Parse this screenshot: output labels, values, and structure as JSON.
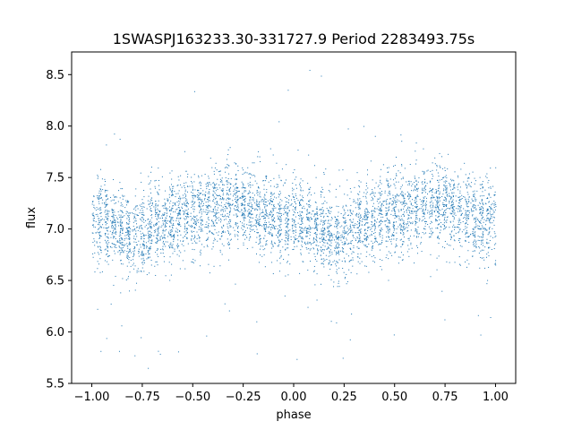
{
  "chart_data": {
    "type": "scatter",
    "title": "1SWASPJ163233.30-331727.9 Period 2283493.75s",
    "xlabel": "phase",
    "ylabel": "flux",
    "xlim": [
      -1.1,
      1.1
    ],
    "ylim": [
      5.5,
      8.72
    ],
    "x_ticks": [
      -1.0,
      -0.75,
      -0.5,
      -0.25,
      0.0,
      0.25,
      0.5,
      0.75,
      1.0
    ],
    "x_tick_labels": [
      "−1.00",
      "−0.75",
      "−0.50",
      "−0.25",
      "0.00",
      "0.25",
      "0.50",
      "0.75",
      "1.00"
    ],
    "y_ticks": [
      5.5,
      6.0,
      6.5,
      7.0,
      7.5,
      8.0,
      8.5
    ],
    "y_tick_labels": [
      "5.5",
      "6.0",
      "6.5",
      "7.0",
      "7.5",
      "8.0",
      "8.5"
    ],
    "grid": false,
    "legend": "none",
    "marker_color": "#1f77b4",
    "series": [
      {
        "x_range": [
          -1.0,
          1.0
        ],
        "phase_profile": {
          "x": [
            -1.0,
            -0.9,
            -0.8,
            -0.75,
            -0.7,
            -0.6,
            -0.5,
            -0.4,
            -0.3,
            -0.25,
            -0.2,
            -0.1,
            0.0,
            0.1,
            0.2,
            0.25,
            0.3,
            0.4,
            0.5,
            0.6,
            0.7,
            0.75,
            0.8,
            0.9,
            1.0
          ],
          "y": [
            7.1,
            7.05,
            6.9,
            6.95,
            7.05,
            7.1,
            7.15,
            7.2,
            7.25,
            7.25,
            7.2,
            7.1,
            7.1,
            7.05,
            6.9,
            6.95,
            7.05,
            7.1,
            7.15,
            7.2,
            7.25,
            7.25,
            7.2,
            7.1,
            7.1
          ]
        },
        "y_spread": 0.35,
        "y_extremes": [
          5.6,
          8.6
        ]
      }
    ]
  }
}
